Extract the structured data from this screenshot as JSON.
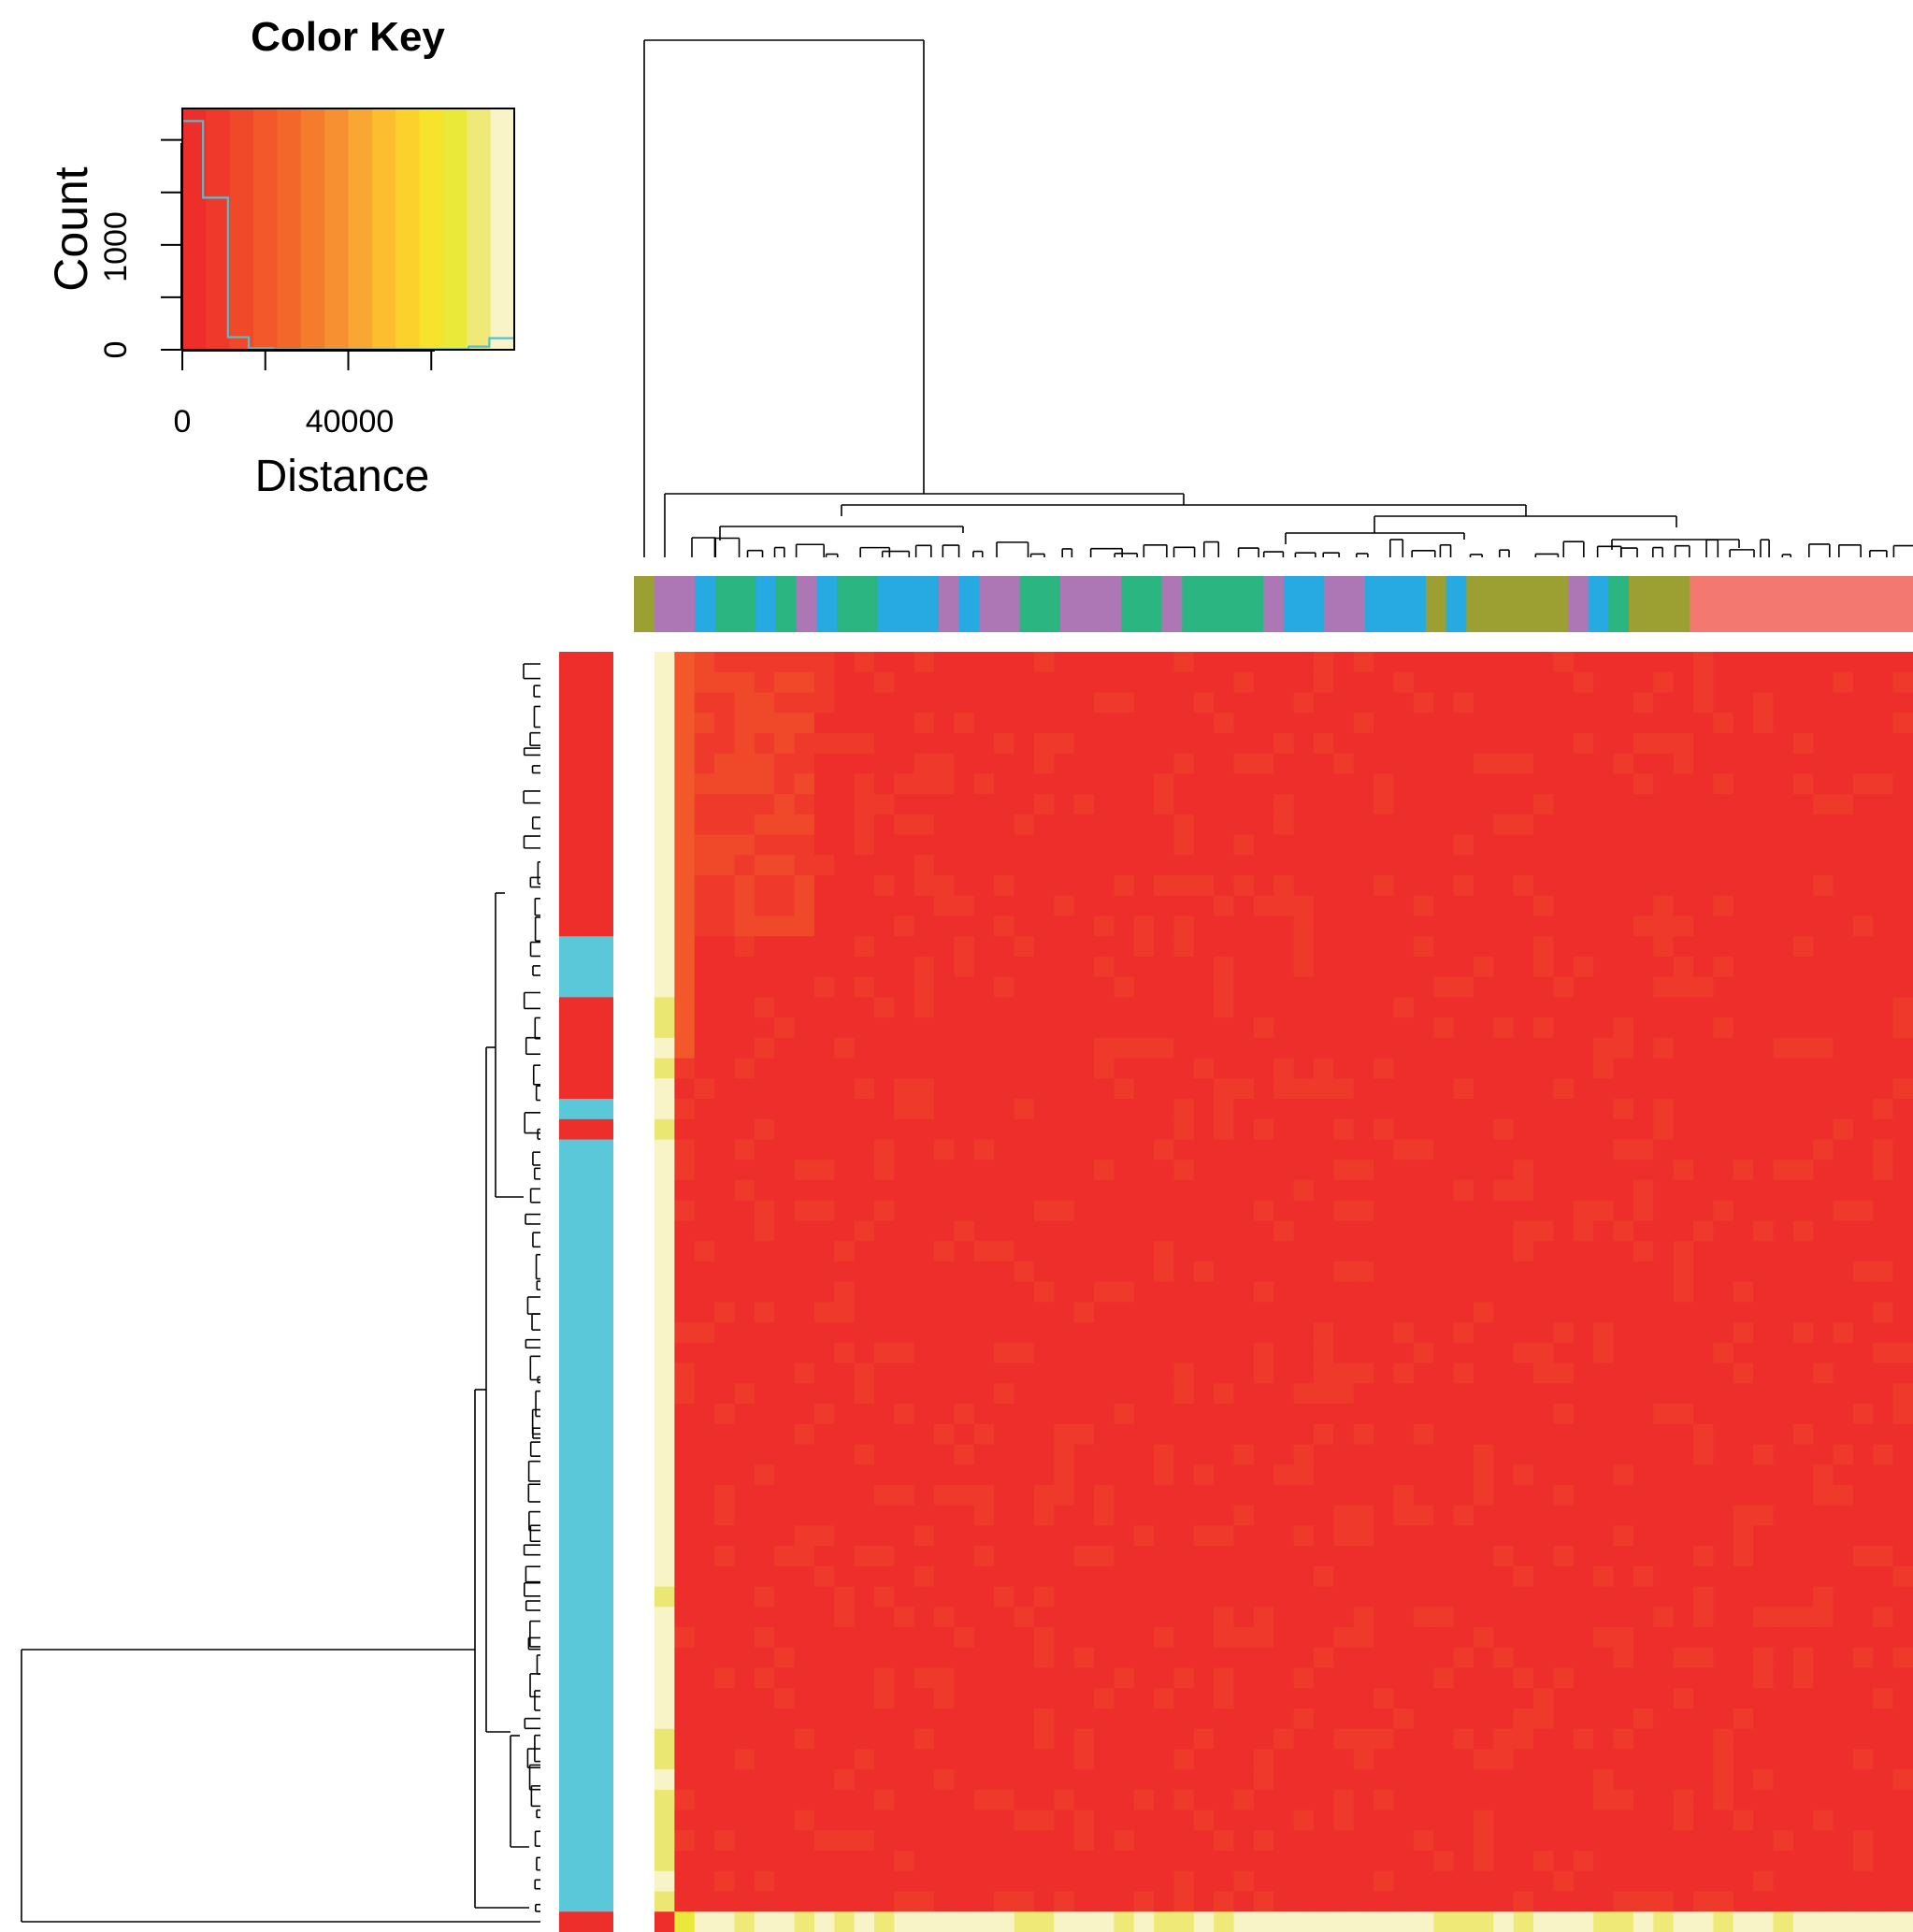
{
  "chart_data": {
    "type": "heatmap",
    "color_key": {
      "title": "Color Key",
      "xlabel": "Distance",
      "ylabel": "Count",
      "x_ticks": [
        "0",
        "40000"
      ],
      "y_ticks": [
        "0",
        "1000"
      ],
      "x_range": [
        0,
        80000
      ],
      "y_range": [
        0,
        2300
      ],
      "palette": [
        "#ee2e2b",
        "#ef3a2b",
        "#f0492a",
        "#f2582a",
        "#f4672b",
        "#f57b2d",
        "#f79030",
        "#f9a632",
        "#fcbd2f",
        "#fdd12c",
        "#f7e32b",
        "#eae839",
        "#efea78",
        "#f8f4c8"
      ],
      "histogram_color": "#56bfcc",
      "histogram": [
        {
          "x0": 0,
          "x1": 5000,
          "count": 2180
        },
        {
          "x0": 5000,
          "x1": 11000,
          "count": 1450
        },
        {
          "x0": 11000,
          "x1": 16000,
          "count": 120
        },
        {
          "x0": 16000,
          "x1": 22000,
          "count": 15
        },
        {
          "x0": 22000,
          "x1": 69000,
          "count": 5
        },
        {
          "x0": 69000,
          "x1": 74000,
          "count": 30
        },
        {
          "x0": 74000,
          "x1": 80000,
          "count": 110
        }
      ]
    },
    "column_groups": {
      "colors": {
        "A": "#9c9f31",
        "B": "#ad77b5",
        "C": "#27a9e1",
        "D": "#2bb580",
        "E": "#f37970"
      },
      "sequence": [
        "A",
        "B",
        "B",
        "C",
        "D",
        "D",
        "C",
        "D",
        "B",
        "C",
        "D",
        "D",
        "C",
        "C",
        "C",
        "B",
        "C",
        "B",
        "B",
        "D",
        "D",
        "B",
        "B",
        "B",
        "D",
        "D",
        "B",
        "D",
        "D",
        "D",
        "D",
        "B",
        "C",
        "C",
        "B",
        "B",
        "C",
        "C",
        "C",
        "A",
        "C",
        "A",
        "A",
        "A",
        "A",
        "A",
        "B",
        "C",
        "D",
        "A",
        "A",
        "A",
        "E",
        "E",
        "E",
        "E",
        "E",
        "E",
        "E",
        "E",
        "E",
        "E",
        "E"
      ]
    },
    "row_groups": {
      "colors": {
        "R": "#ee2e2b",
        "T": "#5ac8d8"
      },
      "runs": [
        [
          "R",
          14
        ],
        [
          "T",
          3
        ],
        [
          "R",
          5
        ],
        [
          "T",
          1
        ],
        [
          "R",
          1
        ],
        [
          "T",
          38
        ],
        [
          "R",
          1
        ]
      ]
    },
    "n_rows": 63,
    "n_cols": 63,
    "value_range": [
      0,
      80000
    ],
    "note_cells": "Distance matrix: nearly all cells near 0–10000; first column and a few rows/cells have high distances (~60000–80000)."
  }
}
